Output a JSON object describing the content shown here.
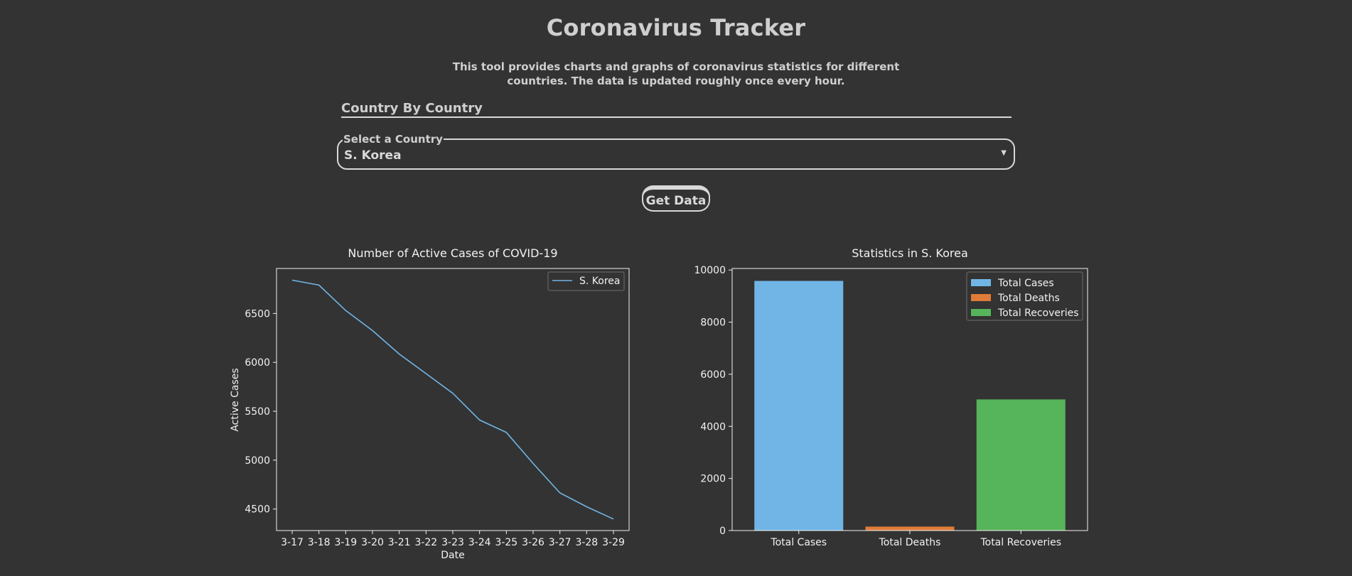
{
  "header": {
    "title": "Coronavirus Tracker",
    "description": "This tool provides charts and graphs of coronavirus statistics for different countries. The data is updated roughly once every hour."
  },
  "section": {
    "heading": "Country By Country"
  },
  "country_select": {
    "legend": "Select a Country",
    "value": "S. Korea"
  },
  "actions": {
    "get_data_label": "Get Data"
  },
  "colors": {
    "background": "#333333",
    "text": "#d9d9d9",
    "series_blue": "#71b5e6",
    "series_orange": "#e07b39",
    "series_green": "#56b45a"
  },
  "chart_data": [
    {
      "type": "line",
      "title": "Number of Active Cases of COVID-19",
      "xlabel": "Date",
      "ylabel": "Active Cases",
      "x": [
        "3-17",
        "3-18",
        "3-19",
        "3-20",
        "3-21",
        "3-22",
        "3-23",
        "3-24",
        "3-25",
        "3-26",
        "3-27",
        "3-28",
        "3-29"
      ],
      "series": [
        {
          "name": "S. Korea",
          "values": [
            6840,
            6790,
            6530,
            6325,
            6085,
            5885,
            5684,
            5410,
            5284,
            4966,
            4665,
            4523,
            4398
          ]
        }
      ],
      "yticks": [
        4500,
        5000,
        5500,
        6000,
        6500
      ],
      "ylim": [
        4280,
        6960
      ],
      "legend_position": "top-right"
    },
    {
      "type": "bar",
      "title": "Statistics in S. Korea",
      "xlabel": "",
      "ylabel": "",
      "categories": [
        "Total Cases",
        "Total Deaths",
        "Total Recoveries"
      ],
      "values": [
        9583,
        152,
        5033
      ],
      "colors": [
        "#71b5e6",
        "#e07b39",
        "#56b45a"
      ],
      "legend": [
        "Total Cases",
        "Total Deaths",
        "Total Recoveries"
      ],
      "yticks": [
        0,
        2000,
        4000,
        6000,
        8000,
        10000
      ],
      "ylim": [
        0,
        10060
      ],
      "legend_position": "top-right"
    }
  ]
}
